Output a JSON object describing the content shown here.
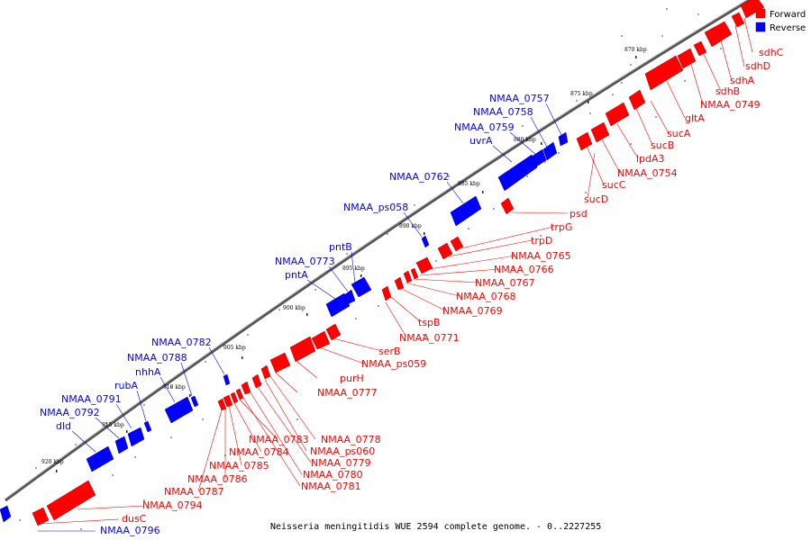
{
  "caption": "Neisseria meningitidis WUE 2594 complete genome. - 0..2227255",
  "legend": [
    {
      "label": "Forward",
      "color": "#ff0000"
    },
    {
      "label": "Reverse",
      "color": "#0000ff"
    }
  ],
  "colors": {
    "forward": "#ff0000",
    "reverse": "#0000ff",
    "forward_dark": "#b00000",
    "reverse_dark": "#0000a8"
  },
  "ticks": [
    "870 kbp",
    "875 kbp",
    "880 kbp",
    "885 kbp",
    "890 kbp",
    "895 kbp",
    "900 kbp",
    "905 kbp",
    "910 kbp",
    "915 kbp",
    "920 kbp"
  ],
  "reverse_genes": [
    "NMAA_0757",
    "NMAA_0758",
    "NMAA_0759",
    "uvrA",
    "NMAA_0762",
    "NMAA_ps058",
    "pntB",
    "NMAA_0773",
    "pntA",
    "NMAA_0782",
    "NMAA_0788",
    "nhhA",
    "rubA",
    "NMAA_0791",
    "NMAA_0792",
    "dld",
    "NMAA_0796"
  ],
  "forward_genes": [
    "sdhC",
    "sdhD",
    "sdhA",
    "sdhB",
    "NMAA_0749",
    "gltA",
    "sucA",
    "sucB",
    "lpdA3",
    "NMAA_0754",
    "sucC",
    "sucD",
    "psd",
    "trpG",
    "trpD",
    "NMAA_0765",
    "NMAA_0766",
    "NMAA_0767",
    "NMAA_0768",
    "NMAA_0769",
    "tspB",
    "NMAA_0771",
    "serB",
    "NMAA_ps059",
    "purH",
    "NMAA_0777",
    "NMAA_0778",
    "NMAA_ps060",
    "NMAA_0779",
    "NMAA_0780",
    "NMAA_0781",
    "NMAA_0783",
    "NMAA_0784",
    "NMAA_0785",
    "NMAA_0786",
    "NMAA_0787",
    "NMAA_0794",
    "dusC"
  ]
}
